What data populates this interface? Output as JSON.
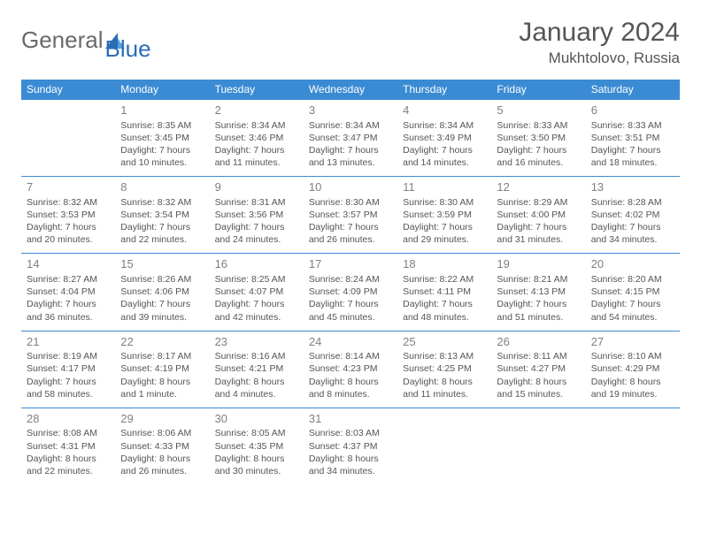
{
  "logo": {
    "general": "General",
    "blue": "Blue"
  },
  "title": "January 2024",
  "location": "Mukhtolovo, Russia",
  "headers": [
    "Sunday",
    "Monday",
    "Tuesday",
    "Wednesday",
    "Thursday",
    "Friday",
    "Saturday"
  ],
  "colors": {
    "header_bg": "#3b8bd4",
    "header_text": "#ffffff",
    "border": "#3b8bd4",
    "text": "#555555",
    "daynum": "#808080",
    "logo_gray": "#6a6a6a",
    "logo_blue": "#2a6db5"
  },
  "weeks": [
    [
      {
        "empty": true
      },
      {
        "n": "1",
        "sr": "Sunrise: 8:35 AM",
        "ss": "Sunset: 3:45 PM",
        "dl": "Daylight: 7 hours and 10 minutes."
      },
      {
        "n": "2",
        "sr": "Sunrise: 8:34 AM",
        "ss": "Sunset: 3:46 PM",
        "dl": "Daylight: 7 hours and 11 minutes."
      },
      {
        "n": "3",
        "sr": "Sunrise: 8:34 AM",
        "ss": "Sunset: 3:47 PM",
        "dl": "Daylight: 7 hours and 13 minutes."
      },
      {
        "n": "4",
        "sr": "Sunrise: 8:34 AM",
        "ss": "Sunset: 3:49 PM",
        "dl": "Daylight: 7 hours and 14 minutes."
      },
      {
        "n": "5",
        "sr": "Sunrise: 8:33 AM",
        "ss": "Sunset: 3:50 PM",
        "dl": "Daylight: 7 hours and 16 minutes."
      },
      {
        "n": "6",
        "sr": "Sunrise: 8:33 AM",
        "ss": "Sunset: 3:51 PM",
        "dl": "Daylight: 7 hours and 18 minutes."
      }
    ],
    [
      {
        "n": "7",
        "sr": "Sunrise: 8:32 AM",
        "ss": "Sunset: 3:53 PM",
        "dl": "Daylight: 7 hours and 20 minutes."
      },
      {
        "n": "8",
        "sr": "Sunrise: 8:32 AM",
        "ss": "Sunset: 3:54 PM",
        "dl": "Daylight: 7 hours and 22 minutes."
      },
      {
        "n": "9",
        "sr": "Sunrise: 8:31 AM",
        "ss": "Sunset: 3:56 PM",
        "dl": "Daylight: 7 hours and 24 minutes."
      },
      {
        "n": "10",
        "sr": "Sunrise: 8:30 AM",
        "ss": "Sunset: 3:57 PM",
        "dl": "Daylight: 7 hours and 26 minutes."
      },
      {
        "n": "11",
        "sr": "Sunrise: 8:30 AM",
        "ss": "Sunset: 3:59 PM",
        "dl": "Daylight: 7 hours and 29 minutes."
      },
      {
        "n": "12",
        "sr": "Sunrise: 8:29 AM",
        "ss": "Sunset: 4:00 PM",
        "dl": "Daylight: 7 hours and 31 minutes."
      },
      {
        "n": "13",
        "sr": "Sunrise: 8:28 AM",
        "ss": "Sunset: 4:02 PM",
        "dl": "Daylight: 7 hours and 34 minutes."
      }
    ],
    [
      {
        "n": "14",
        "sr": "Sunrise: 8:27 AM",
        "ss": "Sunset: 4:04 PM",
        "dl": "Daylight: 7 hours and 36 minutes."
      },
      {
        "n": "15",
        "sr": "Sunrise: 8:26 AM",
        "ss": "Sunset: 4:06 PM",
        "dl": "Daylight: 7 hours and 39 minutes."
      },
      {
        "n": "16",
        "sr": "Sunrise: 8:25 AM",
        "ss": "Sunset: 4:07 PM",
        "dl": "Daylight: 7 hours and 42 minutes."
      },
      {
        "n": "17",
        "sr": "Sunrise: 8:24 AM",
        "ss": "Sunset: 4:09 PM",
        "dl": "Daylight: 7 hours and 45 minutes."
      },
      {
        "n": "18",
        "sr": "Sunrise: 8:22 AM",
        "ss": "Sunset: 4:11 PM",
        "dl": "Daylight: 7 hours and 48 minutes."
      },
      {
        "n": "19",
        "sr": "Sunrise: 8:21 AM",
        "ss": "Sunset: 4:13 PM",
        "dl": "Daylight: 7 hours and 51 minutes."
      },
      {
        "n": "20",
        "sr": "Sunrise: 8:20 AM",
        "ss": "Sunset: 4:15 PM",
        "dl": "Daylight: 7 hours and 54 minutes."
      }
    ],
    [
      {
        "n": "21",
        "sr": "Sunrise: 8:19 AM",
        "ss": "Sunset: 4:17 PM",
        "dl": "Daylight: 7 hours and 58 minutes."
      },
      {
        "n": "22",
        "sr": "Sunrise: 8:17 AM",
        "ss": "Sunset: 4:19 PM",
        "dl": "Daylight: 8 hours and 1 minute."
      },
      {
        "n": "23",
        "sr": "Sunrise: 8:16 AM",
        "ss": "Sunset: 4:21 PM",
        "dl": "Daylight: 8 hours and 4 minutes."
      },
      {
        "n": "24",
        "sr": "Sunrise: 8:14 AM",
        "ss": "Sunset: 4:23 PM",
        "dl": "Daylight: 8 hours and 8 minutes."
      },
      {
        "n": "25",
        "sr": "Sunrise: 8:13 AM",
        "ss": "Sunset: 4:25 PM",
        "dl": "Daylight: 8 hours and 11 minutes."
      },
      {
        "n": "26",
        "sr": "Sunrise: 8:11 AM",
        "ss": "Sunset: 4:27 PM",
        "dl": "Daylight: 8 hours and 15 minutes."
      },
      {
        "n": "27",
        "sr": "Sunrise: 8:10 AM",
        "ss": "Sunset: 4:29 PM",
        "dl": "Daylight: 8 hours and 19 minutes."
      }
    ],
    [
      {
        "n": "28",
        "sr": "Sunrise: 8:08 AM",
        "ss": "Sunset: 4:31 PM",
        "dl": "Daylight: 8 hours and 22 minutes."
      },
      {
        "n": "29",
        "sr": "Sunrise: 8:06 AM",
        "ss": "Sunset: 4:33 PM",
        "dl": "Daylight: 8 hours and 26 minutes."
      },
      {
        "n": "30",
        "sr": "Sunrise: 8:05 AM",
        "ss": "Sunset: 4:35 PM",
        "dl": "Daylight: 8 hours and 30 minutes."
      },
      {
        "n": "31",
        "sr": "Sunrise: 8:03 AM",
        "ss": "Sunset: 4:37 PM",
        "dl": "Daylight: 8 hours and 34 minutes."
      },
      {
        "empty": true
      },
      {
        "empty": true
      },
      {
        "empty": true
      }
    ]
  ]
}
